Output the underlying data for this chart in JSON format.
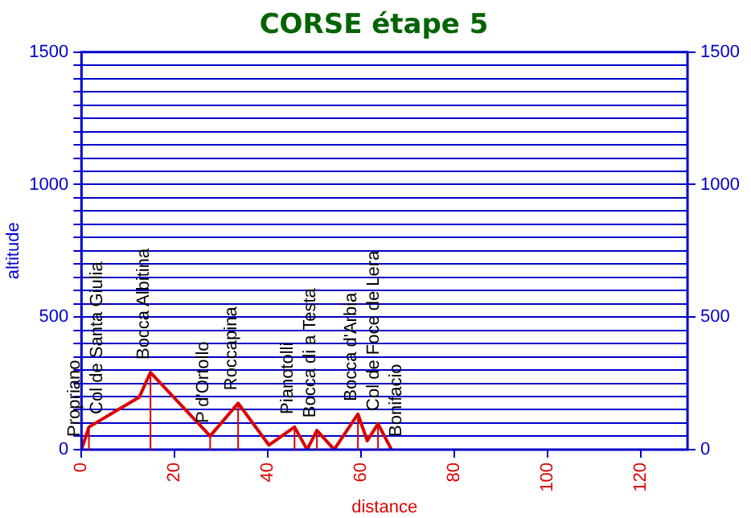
{
  "chart_data": {
    "type": "line",
    "title": "CORSE étape 5",
    "xlabel": "distance",
    "ylabel": "altitude",
    "xlim": [
      0,
      130
    ],
    "xticks": [
      0,
      20,
      40,
      60,
      80,
      100,
      120
    ],
    "ylim": [
      0,
      1500
    ],
    "yticks": [
      0,
      {
        "value": 50,
        "label": null
      },
      {
        "value": 100,
        "label": null
      },
      {
        "value": 150,
        "label": null
      },
      {
        "value": 200,
        "label": null
      },
      {
        "value": 250,
        "label": null
      },
      {
        "value": 300,
        "label": null
      },
      {
        "value": 350,
        "label": null
      },
      {
        "value": 400,
        "label": null
      },
      {
        "value": 450,
        "label": null
      },
      500,
      {
        "value": 550,
        "label": null
      },
      {
        "value": 600,
        "label": null
      },
      {
        "value": 650,
        "label": null
      },
      {
        "value": 700,
        "label": null
      },
      {
        "value": 750,
        "label": null
      },
      {
        "value": 800,
        "label": null
      },
      {
        "value": 850,
        "label": null
      },
      {
        "value": 900,
        "label": null
      },
      {
        "value": 950,
        "label": null
      },
      1000,
      {
        "value": 1050,
        "label": null
      },
      {
        "value": 1100,
        "label": null
      },
      {
        "value": 1150,
        "label": null
      },
      {
        "value": 1200,
        "label": null
      },
      {
        "value": 1250,
        "label": null
      },
      {
        "value": 1300,
        "label": null
      },
      {
        "value": 1350,
        "label": null
      },
      {
        "value": 1400,
        "label": null
      },
      {
        "value": 1450,
        "label": null
      },
      1500
    ],
    "y2lim": [
      0,
      1500
    ],
    "y2ticks": [
      0,
      500,
      1000,
      1500
    ],
    "grid": "y",
    "legend": false,
    "marker": "none",
    "line_style": "solid",
    "series": [
      {
        "color": "#dd0000",
        "x": [
          0,
          1.6,
          12.4,
          14.8,
          27.6,
          33.6,
          40.2,
          45.7,
          48.4,
          50.5,
          54.2,
          59.3,
          61.3,
          63.6,
          66.5
        ],
        "values": [
          0,
          85,
          198,
          291,
          51,
          175,
          17,
          85,
          0,
          72,
          0,
          134,
          33,
          97,
          0
        ]
      }
    ],
    "annotations": [
      {
        "text": "Propriano",
        "x": 0,
        "y": 0
      },
      {
        "text": "Col de Santa Giulia",
        "x": 1.6,
        "y": 85
      },
      {
        "text": "Bocca Albitina",
        "x": 14.8,
        "y": 291
      },
      {
        "text": "P d'Ortollo",
        "x": 27.6,
        "y": 51
      },
      {
        "text": "Roccapina",
        "x": 33.6,
        "y": 175
      },
      {
        "text": "Pianotolli",
        "x": 45.7,
        "y": 85
      },
      {
        "text": "Bocca di a Testa",
        "x": 50.5,
        "y": 72
      },
      {
        "text": "Bocca d'Arbia",
        "x": 59.3,
        "y": 134
      },
      {
        "text": "Col de Foce de Lera",
        "x": 63.6,
        "y": 97
      },
      {
        "text": "Bonifacio",
        "x": 66.5,
        "y": 0
      }
    ]
  }
}
